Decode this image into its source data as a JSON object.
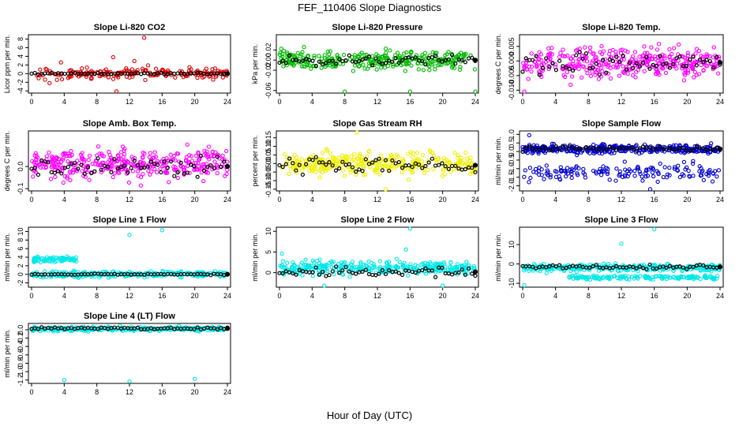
{
  "figure_title": "FEF_110406  Slope Diagnostics",
  "global_xlabel": "Hour of Day (UTC)",
  "colors": {
    "ref": "#000000"
  },
  "chart_data": [
    {
      "id": "p1",
      "type": "scatter",
      "title": "Slope Li-820 CO2",
      "xlabel": "",
      "ylabel": "Licor ppm per min.",
      "xlim": [
        0,
        24
      ],
      "ylim": [
        -4.5,
        9
      ],
      "xticks": [
        0,
        4,
        8,
        12,
        16,
        20,
        24
      ],
      "yticks": [
        -4,
        -2,
        0,
        2,
        4,
        6,
        8
      ],
      "ytick_labels": [
        "-4",
        "-2",
        "0",
        "2",
        "4",
        "6",
        "8"
      ],
      "color": "#e00000",
      "seed": 11,
      "series": [
        {
          "name": "main",
          "base": 0,
          "spread": 0.9,
          "count": 190,
          "x_range": [
            0,
            24
          ],
          "outliers": [
            [
              13.8,
              8.3
            ],
            [
              10.4,
              -4.1
            ],
            [
              10,
              3.8
            ],
            [
              3.6,
              2.6
            ],
            [
              12.6,
              2.9
            ],
            [
              2.2,
              -2.2
            ]
          ]
        }
      ],
      "ref": {
        "base": 0,
        "spread": 0.15
      }
    },
    {
      "id": "p2",
      "type": "scatter",
      "title": "Slope Li-820 Pressure",
      "xlabel": "",
      "ylabel": "kPa per min.",
      "xlim": [
        0,
        24
      ],
      "ylim": [
        -0.065,
        0.05
      ],
      "xticks": [
        0,
        4,
        8,
        12,
        16,
        20,
        24
      ],
      "yticks": [
        -0.06,
        -0.02,
        0.0,
        0.02
      ],
      "ytick_labels": [
        "-0.06",
        "-0.02",
        "0.00",
        "0.02"
      ],
      "color": "#00bb00",
      "seed": 23,
      "series": [
        {
          "name": "main",
          "base": 0.0,
          "spread": 0.013,
          "count": 300,
          "x_range": [
            0,
            24
          ],
          "outliers": [
            [
              8,
              -0.064
            ],
            [
              16,
              -0.064
            ],
            [
              24,
              -0.064
            ]
          ]
        }
      ],
      "ref": {
        "base": 0.0,
        "spread": 0.006
      }
    },
    {
      "id": "p3",
      "type": "scatter",
      "title": "Slope Li-820 Temp.",
      "xlabel": "",
      "ylabel": "degrees C per min.",
      "xlim": [
        0,
        24
      ],
      "ylim": [
        -0.011,
        0.009
      ],
      "xticks": [
        0,
        4,
        8,
        12,
        16,
        20,
        24
      ],
      "yticks": [
        -0.01,
        -0.005,
        0.0,
        0.005
      ],
      "ytick_labels": [
        "-0.010",
        "-0.005",
        "0.000",
        "0.005"
      ],
      "color": "#ff00ff",
      "seed": 37,
      "series": [
        {
          "name": "main",
          "base": -0.0005,
          "spread": 0.0035,
          "count": 360,
          "x_range": [
            0,
            24
          ],
          "outliers": [
            [
              0.2,
              -0.0105
            ]
          ]
        }
      ],
      "ref": {
        "base": -0.0005,
        "spread": 0.0025
      }
    },
    {
      "id": "p4",
      "type": "scatter",
      "title": "Slope Amb. Box Temp.",
      "xlabel": "",
      "ylabel": "degrees C per min.",
      "xlim": [
        0,
        24
      ],
      "ylim": [
        -0.11,
        0.16
      ],
      "xticks": [
        0,
        4,
        8,
        12,
        16,
        20,
        24
      ],
      "yticks": [
        -0.1,
        0.0
      ],
      "ytick_labels": [
        "-0.1",
        "0.0"
      ],
      "color": "#ff00ff",
      "seed": 41,
      "series": [
        {
          "name": "main",
          "base": 0.01,
          "spread": 0.045,
          "count": 360,
          "x_range": [
            0,
            24
          ],
          "outliers": []
        }
      ],
      "ref": {
        "base": 0.0,
        "spread": 0.03
      }
    },
    {
      "id": "p5",
      "type": "scatter",
      "title": "Slope Gas Stream RH",
      "xlabel": "",
      "ylabel": "percent per min.",
      "xlim": [
        0,
        24
      ],
      "ylim": [
        -0.16,
        0.19
      ],
      "xticks": [
        0,
        4,
        8,
        12,
        16,
        20,
        24
      ],
      "yticks": [
        -0.15,
        -0.1,
        -0.05,
        0.0,
        0.05,
        0.1,
        0.15
      ],
      "ytick_labels": [
        "-0.15",
        "-0.10",
        "-0.05",
        "0.00",
        "0.05",
        "0.10",
        "0.15"
      ],
      "color": "#f0f000",
      "seed": 53,
      "series": [
        {
          "name": "main",
          "base": 0.0,
          "spread": 0.045,
          "count": 320,
          "x_range": [
            0,
            24
          ],
          "outliers": [
            [
              9.5,
              0.185
            ],
            [
              13,
              -0.155
            ]
          ]
        }
      ],
      "ref": {
        "base": -0.01,
        "spread": 0.03
      }
    },
    {
      "id": "p6",
      "type": "scatter",
      "title": "Slope Sample Flow",
      "xlabel": "",
      "ylabel": "ml/min per min.",
      "xlim": [
        0,
        24
      ],
      "ylim": [
        -2.3,
        1.2
      ],
      "xticks": [
        0,
        4,
        8,
        12,
        16,
        20,
        24
      ],
      "yticks": [
        -2,
        -1.5,
        -1,
        -0.5,
        0,
        0.5,
        1
      ],
      "ytick_labels": [
        "-2.0",
        "-1.5",
        "-1.0",
        "-0.5",
        "0.0",
        "0.5",
        "1.0"
      ],
      "color": "#0000cc",
      "seed": 67,
      "series": [
        {
          "name": "main",
          "base": 0.15,
          "spread": 0.17,
          "count": 340,
          "x_range": [
            0,
            24
          ],
          "outliers": [
            [
              0.8,
              0.95
            ]
          ]
        },
        {
          "name": "low",
          "base": -1.2,
          "spread": 0.35,
          "count": 150,
          "x_range": [
            0,
            24
          ],
          "outliers": [
            [
              15.5,
              -2.2
            ]
          ]
        }
      ],
      "ref": {
        "base": 0.15,
        "spread": 0.1
      }
    },
    {
      "id": "p7",
      "type": "scatter",
      "title": "Slope Line 1 Flow",
      "xlabel": "",
      "ylabel": "ml/min per min.",
      "xlim": [
        0,
        24
      ],
      "ylim": [
        -3,
        11
      ],
      "xticks": [
        0,
        4,
        8,
        12,
        16,
        20,
        24
      ],
      "yticks": [
        -2,
        0,
        2,
        4,
        6,
        8,
        10
      ],
      "ytick_labels": [
        "-2",
        "0",
        "2",
        "4",
        "6",
        "8",
        "10"
      ],
      "color": "#00e8e8",
      "seed": 71,
      "series": [
        {
          "name": "main",
          "base": 0.0,
          "spread": 0.5,
          "count": 260,
          "x_range": [
            0,
            24
          ],
          "outliers": [
            [
              12,
              9.2
            ],
            [
              16,
              10.3
            ]
          ]
        },
        {
          "name": "high",
          "base": 3.5,
          "spread": 0.4,
          "count": 80,
          "x_range": [
            0.2,
            5.5
          ],
          "outliers": []
        }
      ],
      "ref": {
        "base": 0.0,
        "spread": 0.1
      }
    },
    {
      "id": "p8",
      "type": "scatter",
      "title": "Slope Line 2 Flow",
      "xlabel": "",
      "ylabel": "ml/min per min.",
      "xlim": [
        0,
        24
      ],
      "ylim": [
        -3.5,
        11
      ],
      "xticks": [
        0,
        4,
        8,
        12,
        16,
        20,
        24
      ],
      "yticks": [
        0,
        5,
        10
      ],
      "ytick_labels": [
        "0",
        "5",
        "10"
      ],
      "color": "#00e8e8",
      "seed": 83,
      "series": [
        {
          "name": "main",
          "base": 1.2,
          "spread": 1.1,
          "count": 330,
          "x_range": [
            0,
            24
          ],
          "outliers": [
            [
              16,
              11
            ],
            [
              15.5,
              5.6
            ],
            [
              0.3,
              4.6
            ],
            [
              5.5,
              -3.2
            ],
            [
              20,
              -3.2
            ]
          ]
        }
      ],
      "ref": {
        "base": 0.2,
        "spread": 0.8
      }
    },
    {
      "id": "p9",
      "type": "scatter",
      "title": "Slope Line 3 Flow",
      "xlabel": "",
      "ylabel": "ml/min per min.",
      "xlim": [
        0,
        24
      ],
      "ylim": [
        -12,
        19
      ],
      "xticks": [
        0,
        4,
        8,
        12,
        16,
        20,
        24
      ],
      "yticks": [
        -10,
        0,
        10
      ],
      "ytick_labels": [
        "-10",
        "0",
        "10"
      ],
      "color": "#00e8e8",
      "seed": 97,
      "series": [
        {
          "name": "main",
          "base": -2.0,
          "spread": 1.2,
          "count": 300,
          "x_range": [
            0,
            24
          ],
          "outliers": [
            [
              12,
              10.5
            ],
            [
              16,
              18
            ]
          ]
        },
        {
          "name": "low",
          "base": -7.0,
          "spread": 0.7,
          "count": 150,
          "x_range": [
            5.5,
            24
          ],
          "outliers": [
            [
              0.2,
              -11
            ]
          ]
        }
      ],
      "ref": {
        "base": -1.5,
        "spread": 0.9
      }
    },
    {
      "id": "p10",
      "type": "scatter",
      "title": "Slope Line 4 (LT) Flow",
      "xlabel": "",
      "ylabel": "ml/min per min.",
      "xlim": [
        0,
        24
      ],
      "ylim": [
        -1.28,
        0.15
      ],
      "xticks": [
        0,
        4,
        8,
        12,
        16,
        20,
        24
      ],
      "yticks": [
        -1.2,
        -1.0,
        -0.8,
        -0.6,
        -0.4,
        -0.2,
        0.0
      ],
      "ytick_labels": [
        "-1.2",
        "-1.0",
        "-0.8",
        "-0.6",
        "-0.4",
        "-0.2",
        "0.0"
      ],
      "color": "#00e8e8",
      "seed": 109,
      "series": [
        {
          "name": "main",
          "base": 0.02,
          "spread": 0.035,
          "count": 300,
          "x_range": [
            0,
            24
          ],
          "outliers": [
            [
              4,
              -1.2
            ],
            [
              12,
              -1.23
            ],
            [
              20,
              -1.17
            ]
          ]
        }
      ],
      "ref": {
        "base": 0.03,
        "spread": 0.02
      }
    }
  ]
}
